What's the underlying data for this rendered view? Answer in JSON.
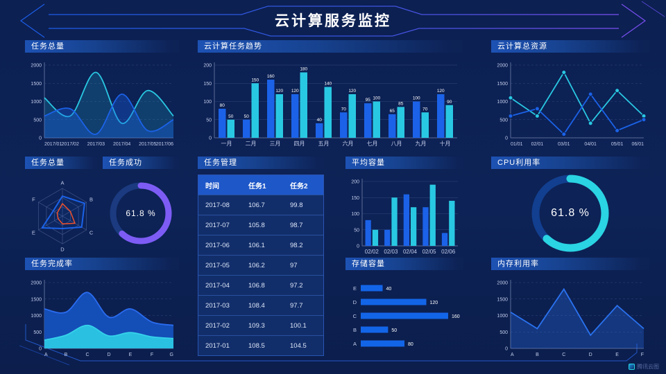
{
  "header": {
    "title": "云计算服务监控"
  },
  "footer": {
    "brand": "腾讯云图"
  },
  "colors": {
    "background": "#0c2153",
    "blue": "#1b62e8",
    "cyan": "#29c8e2",
    "purple": "#7d5cf5",
    "orange": "#f0512c",
    "panel_title_bar": "#1d52b4",
    "table_header": "#1e57c8",
    "table_row": "#122e6a"
  },
  "panels": {
    "task_total_line": {
      "title": "任务总量"
    },
    "task_trend": {
      "title": "云计算任务趋势"
    },
    "cloud_resource": {
      "title": "云计算总资源"
    },
    "task_radar": {
      "title": "任务总量"
    },
    "task_success": {
      "title": "任务成功",
      "value": "61.8 %",
      "percent": 61.8
    },
    "task_table": {
      "title": "任务管理",
      "headers": [
        "时间",
        "任务1",
        "任务2"
      ],
      "rows": [
        [
          "2017-08",
          "106.7",
          "99.8"
        ],
        [
          "2017-07",
          "105.8",
          "98.7"
        ],
        [
          "2017-06",
          "106.1",
          "98.2"
        ],
        [
          "2017-05",
          "106.2",
          "97"
        ],
        [
          "2017-04",
          "106.8",
          "97.2"
        ],
        [
          "2017-03",
          "108.4",
          "97.7"
        ],
        [
          "2017-02",
          "109.3",
          "100.1"
        ],
        [
          "2017-01",
          "108.5",
          "104.5"
        ]
      ]
    },
    "avg_capacity": {
      "title": "平均容量"
    },
    "cpu_usage": {
      "title": "CPU利用率",
      "value": "61.8 %",
      "percent": 61.8
    },
    "task_completion": {
      "title": "任务完成率"
    },
    "storage": {
      "title": "存储容量"
    },
    "memory_usage": {
      "title": "内存利用率"
    }
  },
  "chart_data": [
    {
      "id": "task_total_line",
      "type": "line",
      "title": "任务总量",
      "smooth": true,
      "area": true,
      "x": [
        "2017/01",
        "2017/02",
        "2017/03",
        "2017/04",
        "2017/05",
        "2017/06"
      ],
      "series": [
        {
          "name": "series-cyan",
          "color": "#29c8e2",
          "fillOpacity": 0.18,
          "values": [
            1100,
            600,
            1800,
            400,
            1300,
            600
          ]
        },
        {
          "name": "series-blue",
          "color": "#1b62e8",
          "fillOpacity": 0.35,
          "values": [
            600,
            800,
            100,
            1200,
            200,
            500
          ]
        }
      ],
      "ylim": [
        0,
        2000
      ],
      "yticks": [
        0,
        500,
        1000,
        1500,
        2000
      ],
      "grid": "dashed"
    },
    {
      "id": "task_trend",
      "type": "bar",
      "title": "云计算任务趋势",
      "labels": true,
      "categories": [
        "一月",
        "二月",
        "三月",
        "四月",
        "五月",
        "六月",
        "七月",
        "八月",
        "九月",
        "十月"
      ],
      "series": [
        {
          "name": "任务1",
          "color": "#1b62e8",
          "values": [
            80,
            50,
            160,
            120,
            40,
            70,
            95,
            65,
            100,
            120
          ]
        },
        {
          "name": "任务2",
          "color": "#29c8e2",
          "values": [
            50,
            150,
            120,
            180,
            140,
            120,
            100,
            85,
            70,
            90
          ]
        }
      ],
      "ylim": [
        0,
        200
      ],
      "yticks": [
        0,
        50,
        100,
        150,
        200
      ],
      "grid": "solid"
    },
    {
      "id": "cloud_resource",
      "type": "line",
      "title": "云计算总资源",
      "smooth": false,
      "markers": true,
      "x": [
        "01/01",
        "02/01",
        "03/01",
        "04/01",
        "05/01",
        "06/01"
      ],
      "series": [
        {
          "name": "series-cyan",
          "color": "#29c8e2",
          "values": [
            1100,
            600,
            1800,
            400,
            1300,
            600
          ]
        },
        {
          "name": "series-blue",
          "color": "#1b62e8",
          "values": [
            600,
            800,
            100,
            1200,
            200,
            500
          ]
        }
      ],
      "ylim": [
        0,
        2000
      ],
      "yticks": [
        0,
        500,
        1000,
        1500,
        2000
      ],
      "grid": "dashed"
    },
    {
      "id": "task_radar",
      "type": "radar",
      "title": "任务总量",
      "axes": [
        "A",
        "B",
        "C",
        "D",
        "E",
        "F"
      ],
      "max": 100,
      "series": [
        {
          "name": "series-blue",
          "color": "#1b62e8",
          "values": [
            72,
            92,
            80,
            45,
            85,
            38
          ]
        },
        {
          "name": "series-orange",
          "color": "#f0512c",
          "values": [
            45,
            33,
            52,
            28,
            18,
            22
          ]
        }
      ]
    },
    {
      "id": "task_success",
      "type": "gauge",
      "title": "任务成功",
      "percent": 61.8,
      "label": "61.8 %",
      "color": "#7d5cf5",
      "track": "#1b3a80"
    },
    {
      "id": "avg_capacity",
      "type": "bar",
      "title": "平均容量",
      "labels": false,
      "categories": [
        "02/02",
        "02/03",
        "02/04",
        "02/05",
        "02/06"
      ],
      "series": [
        {
          "name": "series-blue",
          "color": "#1b62e8",
          "values": [
            80,
            50,
            160,
            120,
            40
          ]
        },
        {
          "name": "series-cyan",
          "color": "#29c8e2",
          "values": [
            50,
            150,
            120,
            190,
            140
          ]
        }
      ],
      "ylim": [
        0,
        200
      ],
      "yticks": [
        0,
        50,
        100,
        150,
        200
      ],
      "grid": "solid"
    },
    {
      "id": "cpu_usage",
      "type": "gauge",
      "title": "CPU利用率",
      "percent": 61.8,
      "label": "61.8 %",
      "color": "#2ad4e2",
      "track": "#123f8f"
    },
    {
      "id": "task_completion",
      "type": "line",
      "title": "任务完成率",
      "smooth": true,
      "area": true,
      "x": [
        "A",
        "B",
        "C",
        "D",
        "E",
        "F",
        "G"
      ],
      "series": [
        {
          "name": "series-blue",
          "color": "#2a6cf0",
          "fill": "#1551bd",
          "fillOpacity": 0.95,
          "values": [
            1200,
            1100,
            1700,
            950,
            1200,
            800,
            700
          ]
        },
        {
          "name": "series-cyan",
          "color": "#35d2ea",
          "fill": "#29c0e2",
          "fillOpacity": 1,
          "values": [
            250,
            400,
            700,
            380,
            480,
            350,
            300
          ]
        }
      ],
      "ylim": [
        0,
        2000
      ],
      "yticks": [
        0,
        500,
        1000,
        1500,
        2000
      ],
      "grid": "dashed"
    },
    {
      "id": "storage",
      "type": "hbar",
      "title": "存储容量",
      "categories": [
        "E",
        "D",
        "C",
        "B",
        "A"
      ],
      "values": [
        40,
        120,
        160,
        50,
        80
      ],
      "color": "#1365e8",
      "xlim": [
        0,
        160
      ]
    },
    {
      "id": "memory_usage",
      "type": "line",
      "title": "内存利用率",
      "smooth": false,
      "area": true,
      "x": [
        "A",
        "B",
        "C",
        "D",
        "E",
        "F"
      ],
      "series": [
        {
          "name": "series-blue",
          "color": "#2a72f0",
          "fillOpacity": 0.3,
          "values": [
            1100,
            600,
            1800,
            400,
            1300,
            600
          ]
        }
      ],
      "ylim": [
        0,
        2000
      ],
      "yticks": [
        0,
        500,
        1000,
        1500,
        2000
      ],
      "grid": "dashed"
    }
  ]
}
